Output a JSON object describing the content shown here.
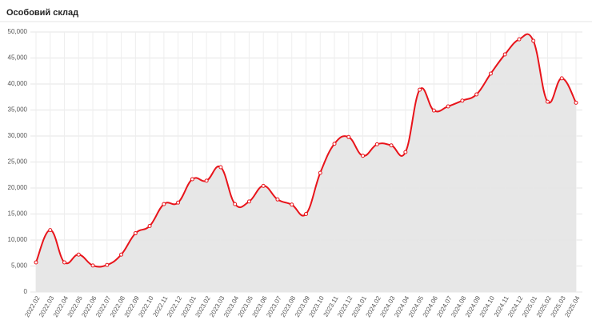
{
  "chart_data": {
    "type": "line",
    "title": "Особовий склад",
    "categories": [
      "2022.02",
      "2022.03",
      "2022.04",
      "2022.05",
      "2022.06",
      "2022.07",
      "2022.08",
      "2022.09",
      "2022.10",
      "2022.11",
      "2022.12",
      "2023.01",
      "2023.02",
      "2023.03",
      "2023.04",
      "2023.05",
      "2023.06",
      "2023.07",
      "2023.08",
      "2023.09",
      "2023.10",
      "2023.11",
      "2023.12",
      "2024.01",
      "2024.02",
      "2024.03",
      "2024.04",
      "2024.05",
      "2024.06",
      "2024.07",
      "2024.08",
      "2024.09",
      "2024.10",
      "2024.11",
      "2024.12",
      "2025.01",
      "2025.02",
      "2025.03",
      "2025.04"
    ],
    "values": [
      5700,
      11900,
      5700,
      7200,
      5100,
      5200,
      7200,
      11300,
      12700,
      16900,
      17200,
      21700,
      21400,
      24000,
      16900,
      17400,
      20400,
      17800,
      16800,
      15000,
      22900,
      28500,
      29800,
      26200,
      28400,
      28200,
      26900,
      38900,
      34900,
      35700,
      36800,
      38000,
      42000,
      45700,
      48600,
      48300,
      36600,
      41100,
      36400
    ],
    "color": "#e8141b",
    "area_color": "#e6e6e6",
    "ylim": [
      0,
      50000
    ],
    "yticks": [
      0,
      {
        "value": 5000,
        "label": "5,000"
      },
      {
        "value": 10000,
        "label": "10,000"
      },
      {
        "value": 15000,
        "label": "15,000"
      },
      {
        "value": 20000,
        "label": "20,000"
      },
      {
        "value": 25000,
        "label": "25,000"
      },
      {
        "value": 30000,
        "label": "30,000"
      },
      {
        "value": 35000,
        "label": "35,000"
      },
      {
        "value": 40000,
        "label": "40,000"
      },
      {
        "value": 45000,
        "label": "45,000"
      },
      {
        "value": 50000,
        "label": "50,000"
      }
    ],
    "grid": true
  }
}
